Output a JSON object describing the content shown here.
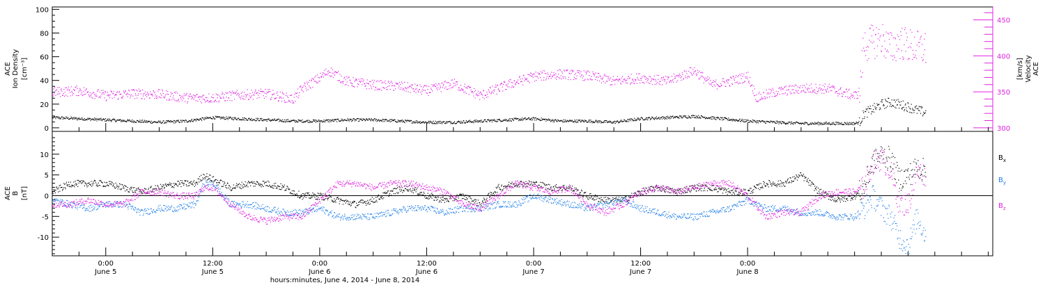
{
  "chart_data": [
    {
      "type": "scatter",
      "panel": "top",
      "ylabel_lines": [
        "ACE",
        "Ion Density"
      ],
      "ylabel_unit": "[cm⁻³]",
      "y2label_lines": [
        "ACE",
        "Velocity"
      ],
      "y2label_unit": "[km/s]",
      "ylim": [
        -3,
        102
      ],
      "y2lim": [
        295,
        468
      ],
      "yticks": [
        0,
        20,
        40,
        60,
        80,
        100
      ],
      "y2ticks": [
        300,
        350,
        400,
        450
      ],
      "colors": {
        "density": "#000000",
        "velocity": "#e020e0"
      },
      "series": [
        {
          "key": "density",
          "axis": "left",
          "x_hours": [
            -6,
            -3,
            0,
            3,
            6,
            9,
            12,
            15,
            18,
            21,
            24,
            27,
            30,
            33,
            36,
            39,
            42,
            45,
            48,
            51,
            54,
            57,
            60,
            63,
            66,
            69,
            72,
            75,
            78,
            81,
            84,
            84.5,
            85,
            86,
            87,
            88,
            89,
            90,
            91,
            92
          ],
          "values": [
            9,
            8,
            7,
            6,
            5,
            6,
            9,
            8,
            7,
            6,
            6,
            7,
            7,
            6,
            5,
            5,
            6,
            7,
            8,
            6,
            6,
            5,
            8,
            9,
            10,
            8,
            6,
            5,
            4,
            4,
            4,
            5,
            12,
            16,
            20,
            22,
            20,
            18,
            15,
            13
          ]
        },
        {
          "key": "velocity",
          "axis": "right",
          "x_hours": [
            -6,
            -3,
            0,
            3,
            6,
            9,
            12,
            15,
            18,
            21,
            22,
            24,
            25,
            27,
            30,
            33,
            36,
            39,
            42,
            45,
            48,
            51,
            54,
            57,
            60,
            63,
            66,
            68,
            70,
            72,
            73,
            75,
            78,
            81,
            84,
            84.5,
            85,
            86,
            87,
            88,
            89,
            90,
            91,
            92
          ],
          "values": [
            350,
            352,
            345,
            348,
            347,
            342,
            342,
            346,
            348,
            340,
            355,
            370,
            380,
            365,
            360,
            358,
            352,
            362,
            345,
            360,
            372,
            375,
            373,
            365,
            370,
            365,
            380,
            360,
            365,
            372,
            342,
            350,
            355,
            355,
            345,
            350,
            415,
            420,
            425,
            410,
            420,
            415,
            412,
            410
          ]
        }
      ]
    },
    {
      "type": "scatter",
      "panel": "bottom",
      "ylabel_lines": [
        "ACE",
        "B"
      ],
      "ylabel_unit": "[nT]",
      "ylim": [
        -14.5,
        15.5
      ],
      "yticks": [
        -10,
        -5,
        0,
        5,
        10
      ],
      "colors": {
        "bx": "#000000",
        "by": "#1e7ee8",
        "bz": "#e020e0"
      },
      "series": [
        {
          "key": "bx",
          "x_hours": [
            -6,
            -4,
            -2,
            0,
            2,
            4,
            6,
            8,
            10,
            11,
            12,
            14,
            16,
            18,
            20,
            22,
            24,
            26,
            28,
            30,
            32,
            34,
            36,
            38,
            40,
            42,
            44,
            46,
            48,
            50,
            52,
            54,
            56,
            58,
            60,
            62,
            64,
            66,
            68,
            70,
            72,
            74,
            76,
            78,
            80,
            82,
            84,
            85,
            86,
            87,
            88,
            89,
            90,
            91,
            92
          ],
          "values": [
            1,
            3,
            3,
            3,
            2,
            1,
            2,
            3,
            3,
            5,
            4,
            2,
            3,
            3,
            2,
            0,
            0,
            -1,
            -2,
            -1,
            1,
            2,
            0,
            -1,
            0,
            -2,
            2,
            3,
            3,
            2,
            2,
            0,
            -1,
            -1,
            1,
            2,
            1,
            2,
            2,
            1,
            1,
            3,
            3,
            5,
            1,
            -1,
            0,
            2,
            8,
            10,
            9,
            4,
            5,
            7,
            6
          ]
        },
        {
          "key": "by",
          "x_hours": [
            -6,
            -4,
            -2,
            0,
            2,
            4,
            6,
            8,
            10,
            11,
            12,
            14,
            16,
            18,
            20,
            22,
            24,
            26,
            28,
            30,
            32,
            34,
            36,
            38,
            40,
            42,
            44,
            46,
            48,
            50,
            52,
            54,
            56,
            58,
            60,
            62,
            64,
            66,
            68,
            70,
            72,
            74,
            76,
            78,
            80,
            82,
            84,
            85,
            86,
            87,
            88,
            89,
            90,
            91,
            92
          ],
          "values": [
            -1,
            -2,
            -3,
            -2,
            -2,
            -4,
            -3,
            -3,
            -2,
            3,
            3,
            -2,
            -2,
            -3,
            -4,
            -4,
            -3,
            -5,
            -5,
            -5,
            -4,
            -3,
            -3,
            -4,
            -3,
            -3,
            -2,
            -2,
            0,
            -1,
            -2,
            -3,
            -2,
            -1,
            -3,
            -4,
            -5,
            -5,
            -4,
            -3,
            -1,
            -3,
            -3,
            -4,
            -4,
            -5,
            -5,
            -3,
            0,
            -3,
            -5,
            -10,
            -12,
            -5,
            -10
          ]
        },
        {
          "key": "bz",
          "x_hours": [
            -6,
            -4,
            -2,
            0,
            2,
            4,
            6,
            8,
            10,
            11,
            12,
            14,
            16,
            18,
            20,
            22,
            24,
            26,
            28,
            30,
            32,
            34,
            36,
            38,
            40,
            42,
            44,
            46,
            48,
            50,
            52,
            54,
            56,
            58,
            60,
            62,
            64,
            66,
            68,
            70,
            72,
            74,
            76,
            78,
            80,
            82,
            84,
            85,
            86,
            87,
            88,
            89,
            90,
            91,
            92
          ],
          "values": [
            -2,
            -2,
            -1,
            -2,
            -2,
            1,
            1,
            0,
            0,
            2,
            2,
            -2,
            -5,
            -6,
            -5,
            -5,
            -1,
            3,
            3,
            2,
            3,
            3,
            2,
            1,
            -2,
            -3,
            0,
            3,
            2,
            1,
            2,
            -2,
            -4,
            -2,
            1,
            2,
            1,
            2,
            3,
            3,
            0,
            -5,
            -4,
            -4,
            0,
            1,
            1,
            2,
            8,
            9,
            6,
            -2,
            -2,
            6,
            5
          ]
        }
      ]
    }
  ],
  "x_axis": {
    "xlim_hours": [
      -6,
      99.5
    ],
    "major_ticks": [
      {
        "h": 0,
        "time": "0:00",
        "day": "June 5"
      },
      {
        "h": 12,
        "time": "12:00",
        "day": "June 5"
      },
      {
        "h": 24,
        "time": "0:00",
        "day": "June 6"
      },
      {
        "h": 36,
        "time": "12:00",
        "day": "June 6"
      },
      {
        "h": 48,
        "time": "0:00",
        "day": "June 7"
      },
      {
        "h": 60,
        "time": "12:00",
        "day": "June 7"
      },
      {
        "h": 72,
        "time": "0:00",
        "day": "June 8"
      }
    ],
    "xlabel": "hours:minutes, June  4, 2014 - June  8, 2014"
  },
  "legend": [
    {
      "key": "bx",
      "base": "B",
      "sub": "x",
      "color": "#000000"
    },
    {
      "key": "by",
      "base": "B",
      "sub": "y",
      "color": "#1e7ee8"
    },
    {
      "key": "bz",
      "base": "B",
      "sub": "z",
      "color": "#e020e0"
    }
  ]
}
